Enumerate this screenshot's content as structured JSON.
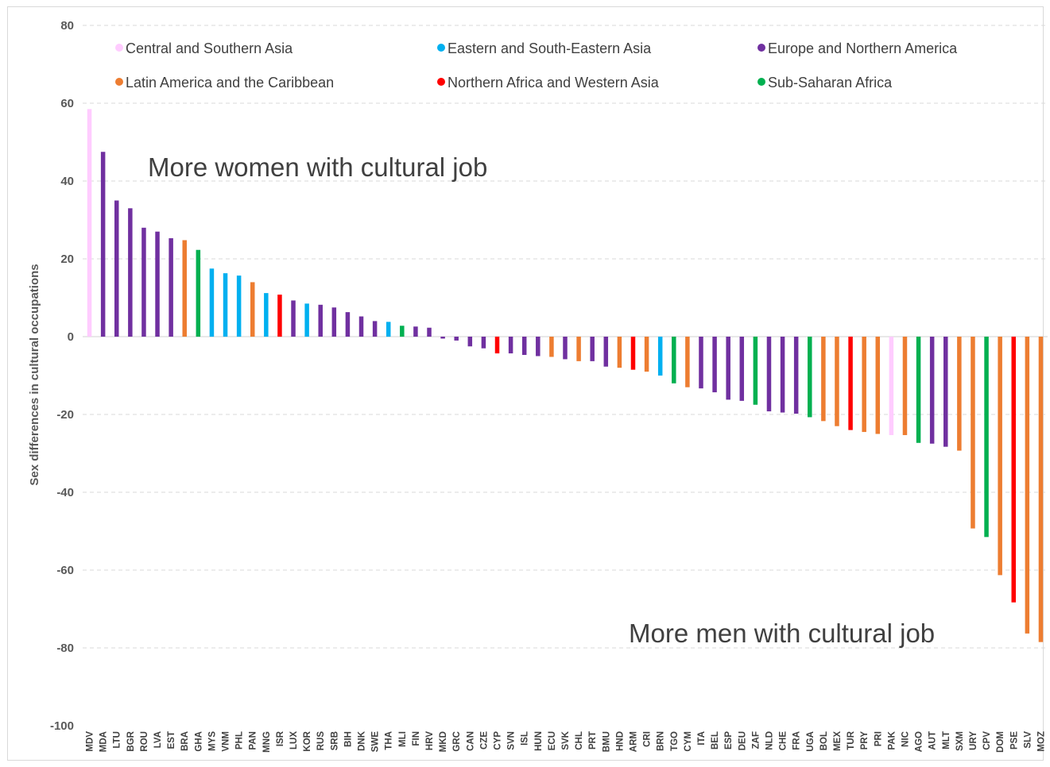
{
  "chart_data": {
    "type": "bar",
    "ylabel": "Sex differences in cultural occupations",
    "ylim": [
      -100,
      80
    ],
    "yticks": [
      80,
      60,
      40,
      20,
      0,
      -20,
      -40,
      -60,
      -80,
      -100
    ],
    "grid": true,
    "legend_position": "top",
    "annotations": {
      "top": "More women with cultural job",
      "bottom": "More men with cultural job"
    },
    "regions": [
      {
        "name": "Central and Southern Asia",
        "color": "#ffccff"
      },
      {
        "name": "Eastern and South-Eastern Asia",
        "color": "#00b0f0"
      },
      {
        "name": "Europe and Northern America",
        "color": "#7030a0"
      },
      {
        "name": "Latin America and the Caribbean",
        "color": "#ed7d31"
      },
      {
        "name": "Northern Africa and Western Asia",
        "color": "#ff0000"
      },
      {
        "name": "Sub-Saharan Africa",
        "color": "#00b050"
      }
    ],
    "bars": [
      {
        "cat": "MDV",
        "value": 58.5,
        "region": 0
      },
      {
        "cat": "MDA",
        "value": 47.5,
        "region": 2
      },
      {
        "cat": "LTU",
        "value": 35,
        "region": 2
      },
      {
        "cat": "BGR",
        "value": 33,
        "region": 2
      },
      {
        "cat": "ROU",
        "value": 28,
        "region": 2
      },
      {
        "cat": "LVA",
        "value": 27,
        "region": 2
      },
      {
        "cat": "EST",
        "value": 25.3,
        "region": 2
      },
      {
        "cat": "BRA",
        "value": 24.8,
        "region": 3
      },
      {
        "cat": "GHA",
        "value": 22.3,
        "region": 5
      },
      {
        "cat": "MYS",
        "value": 17.5,
        "region": 1
      },
      {
        "cat": "VNM",
        "value": 16.3,
        "region": 1
      },
      {
        "cat": "PHL",
        "value": 15.7,
        "region": 1
      },
      {
        "cat": "PAN",
        "value": 14,
        "region": 3
      },
      {
        "cat": "MNG",
        "value": 11.2,
        "region": 1
      },
      {
        "cat": "ISR",
        "value": 10.8,
        "region": 4
      },
      {
        "cat": "LUX",
        "value": 9.3,
        "region": 2
      },
      {
        "cat": "KOR",
        "value": 8.5,
        "region": 1
      },
      {
        "cat": "RUS",
        "value": 8.2,
        "region": 2
      },
      {
        "cat": "SRB",
        "value": 7.5,
        "region": 2
      },
      {
        "cat": "BIH",
        "value": 6.3,
        "region": 2
      },
      {
        "cat": "DNK",
        "value": 5.2,
        "region": 2
      },
      {
        "cat": "SWE",
        "value": 4,
        "region": 2
      },
      {
        "cat": "THA",
        "value": 3.8,
        "region": 1
      },
      {
        "cat": "MLI",
        "value": 2.8,
        "region": 5
      },
      {
        "cat": "FIN",
        "value": 2.6,
        "region": 2
      },
      {
        "cat": "HRV",
        "value": 2.3,
        "region": 2
      },
      {
        "cat": "MKD",
        "value": -0.5,
        "region": 2
      },
      {
        "cat": "GRC",
        "value": -1,
        "region": 2
      },
      {
        "cat": "CAN",
        "value": -2.5,
        "region": 2
      },
      {
        "cat": "CZE",
        "value": -3,
        "region": 2
      },
      {
        "cat": "CYP",
        "value": -4.3,
        "region": 4
      },
      {
        "cat": "SVN",
        "value": -4.3,
        "region": 2
      },
      {
        "cat": "ISL",
        "value": -4.7,
        "region": 2
      },
      {
        "cat": "HUN",
        "value": -5,
        "region": 2
      },
      {
        "cat": "ECU",
        "value": -5.2,
        "region": 3
      },
      {
        "cat": "SVK",
        "value": -5.8,
        "region": 2
      },
      {
        "cat": "CHL",
        "value": -6.3,
        "region": 3
      },
      {
        "cat": "PRT",
        "value": -6.3,
        "region": 2
      },
      {
        "cat": "BMU",
        "value": -7.7,
        "region": 2
      },
      {
        "cat": "HND",
        "value": -8,
        "region": 3
      },
      {
        "cat": "ARM",
        "value": -8.5,
        "region": 4
      },
      {
        "cat": "CRI",
        "value": -9,
        "region": 3
      },
      {
        "cat": "BRN",
        "value": -10,
        "region": 1
      },
      {
        "cat": "TGO",
        "value": -12,
        "region": 5
      },
      {
        "cat": "CYM",
        "value": -13,
        "region": 3
      },
      {
        "cat": "ITA",
        "value": -13.3,
        "region": 2
      },
      {
        "cat": "BEL",
        "value": -14.3,
        "region": 2
      },
      {
        "cat": "ESP",
        "value": -16.2,
        "region": 2
      },
      {
        "cat": "DEU",
        "value": -16.5,
        "region": 2
      },
      {
        "cat": "ZAF",
        "value": -17.5,
        "region": 5
      },
      {
        "cat": "NLD",
        "value": -19.2,
        "region": 2
      },
      {
        "cat": "CHE",
        "value": -19.5,
        "region": 2
      },
      {
        "cat": "FRA",
        "value": -19.8,
        "region": 2
      },
      {
        "cat": "UGA",
        "value": -20.7,
        "region": 5
      },
      {
        "cat": "BOL",
        "value": -21.7,
        "region": 3
      },
      {
        "cat": "MEX",
        "value": -23,
        "region": 3
      },
      {
        "cat": "TUR",
        "value": -24,
        "region": 4
      },
      {
        "cat": "PRY",
        "value": -24.5,
        "region": 3
      },
      {
        "cat": "PRI",
        "value": -25,
        "region": 3
      },
      {
        "cat": "PAK",
        "value": -25.3,
        "region": 0
      },
      {
        "cat": "NIC",
        "value": -25.3,
        "region": 3
      },
      {
        "cat": "AGO",
        "value": -27.3,
        "region": 5
      },
      {
        "cat": "AUT",
        "value": -27.5,
        "region": 2
      },
      {
        "cat": "MLT",
        "value": -28.3,
        "region": 2
      },
      {
        "cat": "SXM",
        "value": -29.3,
        "region": 3
      },
      {
        "cat": "URY",
        "value": -49.3,
        "region": 3
      },
      {
        "cat": "CPV",
        "value": -51.5,
        "region": 5
      },
      {
        "cat": "DOM",
        "value": -61.3,
        "region": 3
      },
      {
        "cat": "PSE",
        "value": -68.3,
        "region": 4
      },
      {
        "cat": "SLV",
        "value": -76.3,
        "region": 3
      },
      {
        "cat": "MOZ",
        "value": -78.5,
        "region": 3
      }
    ]
  }
}
